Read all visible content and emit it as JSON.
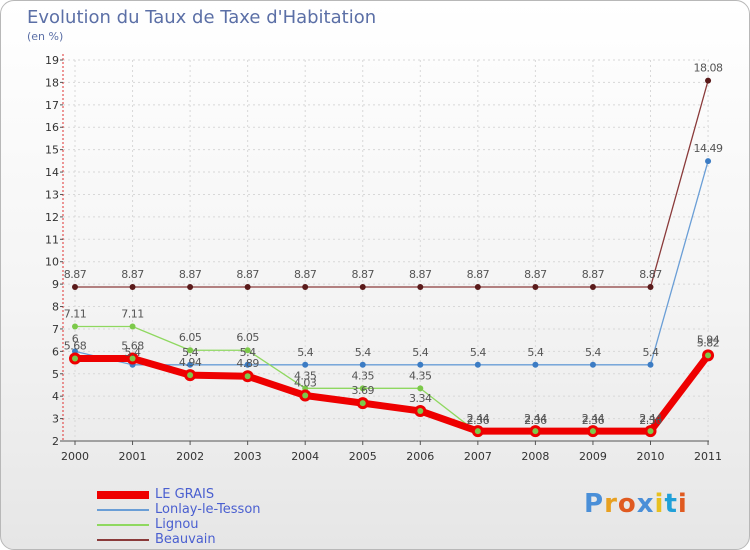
{
  "chart_data": {
    "type": "line",
    "title": "Evolution du Taux de Taxe d'Habitation",
    "subtitle": "(en %)",
    "x": [
      "2000",
      "2001",
      "2002",
      "2003",
      "2004",
      "2005",
      "2006",
      "2007",
      "2008",
      "2009",
      "2010",
      "2011"
    ],
    "ylim": [
      2,
      19
    ],
    "yticks": [
      2,
      3,
      4,
      5,
      6,
      7,
      8,
      9,
      10,
      11,
      12,
      13,
      14,
      15,
      16,
      17,
      18,
      19
    ],
    "series": [
      {
        "name": "Beauvain",
        "color": "#8a3a3a",
        "dot": "#5a1a1a",
        "values": [
          8.87,
          8.87,
          8.87,
          8.87,
          8.87,
          8.87,
          8.87,
          8.87,
          8.87,
          8.87,
          8.87,
          18.08
        ],
        "labels": [
          "8.87",
          "8.87",
          "8.87",
          "8.87",
          "8.87",
          "8.87",
          "8.87",
          "8.87",
          "8.87",
          "8.87",
          "8.87",
          "18.08"
        ]
      },
      {
        "name": "Lonlay-le-Tesson",
        "color": "#6a9ed6",
        "dot": "#3c7cc4",
        "values": [
          6,
          5.4,
          5.4,
          5.4,
          5.4,
          5.4,
          5.4,
          5.4,
          5.4,
          5.4,
          5.4,
          14.49
        ],
        "labels": [
          "6",
          "5.4",
          "5.4",
          "5.4",
          "5.4",
          "5.4",
          "5.4",
          "5.4",
          "5.4",
          "5.4",
          "5.4",
          "14.49"
        ]
      },
      {
        "name": "Lignou",
        "color": "#8fd860",
        "dot": "#7cc94a",
        "values": [
          7.11,
          7.11,
          6.05,
          6.05,
          4.35,
          4.35,
          4.35,
          2.36,
          2.36,
          2.36,
          2.36,
          5.94
        ],
        "labels": [
          "7.11",
          "7.11",
          "6.05",
          "6.05",
          "4.35",
          "4.35",
          "4.35",
          "2.36",
          "2.36",
          "2.36",
          "2.36",
          "5.94"
        ]
      },
      {
        "name": "LE GRAIS",
        "color": "#ee0000",
        "dot": "#ee0000",
        "values": [
          5.68,
          5.68,
          4.94,
          4.89,
          4.03,
          3.69,
          3.34,
          2.44,
          2.44,
          2.44,
          2.44,
          5.82
        ],
        "labels": [
          "5.68",
          "5.68",
          "4.94",
          "4.89",
          "4.03",
          "3.69",
          "3.34",
          "2.44",
          "2.44",
          "2.44",
          "2.44",
          "5.82"
        ]
      }
    ],
    "legend": [
      "LE GRAIS",
      "Lonlay-le-Tesson",
      "Lignou",
      "Beauvain"
    ]
  },
  "logo_text": "Proxiti",
  "logo_colors": [
    "#4a8fd8",
    "#e8a020",
    "#e05a20",
    "#4a8fd8",
    "#e8c020",
    "#20a0d8",
    "#e05a20"
  ]
}
